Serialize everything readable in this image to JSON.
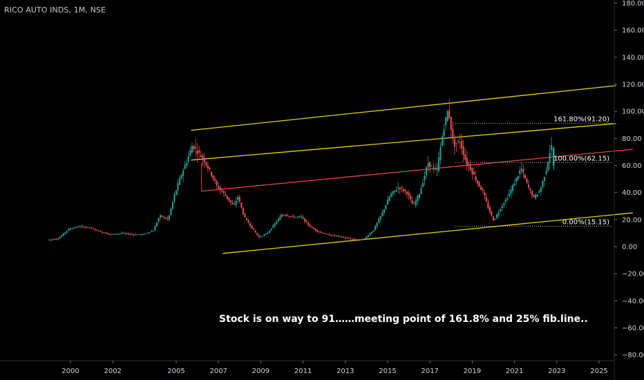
{
  "header": {
    "title": "RICO AUTO INDS, 1M, NSE"
  },
  "chart_data": {
    "type": "candlestick",
    "title": "RICO AUTO INDS, 1M, NSE",
    "symbol": "RICO AUTO INDS",
    "interval": "1M",
    "exchange": "NSE",
    "y_axis": {
      "ticks": [
        "180.00",
        "160.00",
        "140.00",
        "120.00",
        "100.00",
        "80.00",
        "60.00",
        "40.00",
        "20.00",
        "0.00",
        "−20.00",
        "−40.00",
        "−60.00",
        "−80.00"
      ],
      "range": [
        -82,
        182
      ]
    },
    "x_axis": {
      "ticks": [
        "2000",
        "2002",
        "2005",
        "2007",
        "2009",
        "2011",
        "2013",
        "2015",
        "2017",
        "2019",
        "2021",
        "2023",
        "2025"
      ],
      "range_years": [
        1998.0,
        2026.6
      ]
    },
    "grid": false,
    "colors": {
      "up": "#26a69a",
      "down": "#ef5350",
      "channel": "#e6d31f",
      "midline": "#e54848",
      "axis_text": "#d1d4dc"
    },
    "price_path": [
      [
        1999.0,
        5
      ],
      [
        1999.5,
        6
      ],
      [
        2000.0,
        13
      ],
      [
        2000.5,
        15
      ],
      [
        2001.0,
        14
      ],
      [
        2001.5,
        11
      ],
      [
        2002.0,
        9
      ],
      [
        2002.5,
        10
      ],
      [
        2003.0,
        9
      ],
      [
        2003.5,
        9
      ],
      [
        2004.0,
        12
      ],
      [
        2004.3,
        23
      ],
      [
        2004.7,
        20
      ],
      [
        2005.0,
        38
      ],
      [
        2005.3,
        52
      ],
      [
        2005.6,
        64
      ],
      [
        2005.85,
        75
      ],
      [
        2006.1,
        70
      ],
      [
        2006.4,
        64
      ],
      [
        2006.7,
        55
      ],
      [
        2007.0,
        45
      ],
      [
        2007.4,
        38
      ],
      [
        2007.8,
        30
      ],
      [
        2008.0,
        37
      ],
      [
        2008.3,
        22
      ],
      [
        2008.7,
        13
      ],
      [
        2009.0,
        7
      ],
      [
        2009.4,
        10
      ],
      [
        2009.8,
        18
      ],
      [
        2010.1,
        24
      ],
      [
        2010.6,
        22
      ],
      [
        2011.0,
        22
      ],
      [
        2011.4,
        15
      ],
      [
        2011.8,
        11
      ],
      [
        2012.2,
        9
      ],
      [
        2012.7,
        8
      ],
      [
        2013.2,
        6
      ],
      [
        2013.7,
        5
      ],
      [
        2014.0,
        6
      ],
      [
        2014.4,
        12
      ],
      [
        2014.8,
        24
      ],
      [
        2015.2,
        38
      ],
      [
        2015.6,
        44
      ],
      [
        2016.0,
        40
      ],
      [
        2016.3,
        30
      ],
      [
        2016.6,
        40
      ],
      [
        2017.0,
        62
      ],
      [
        2017.4,
        55
      ],
      [
        2017.7,
        85
      ],
      [
        2017.95,
        102
      ],
      [
        2018.2,
        75
      ],
      [
        2018.5,
        78
      ],
      [
        2018.8,
        62
      ],
      [
        2019.0,
        58
      ],
      [
        2019.3,
        48
      ],
      [
        2019.6,
        40
      ],
      [
        2019.85,
        28
      ],
      [
        2020.1,
        19
      ],
      [
        2020.4,
        28
      ],
      [
        2020.8,
        38
      ],
      [
        2021.1,
        48
      ],
      [
        2021.4,
        58
      ],
      [
        2021.7,
        45
      ],
      [
        2022.0,
        36
      ],
      [
        2022.3,
        42
      ],
      [
        2022.6,
        58
      ],
      [
        2022.8,
        74
      ]
    ],
    "channel_lines": [
      {
        "name": "upper",
        "from": [
          2005.7,
          86
        ],
        "to": [
          2025.8,
          119
        ]
      },
      {
        "name": "middle",
        "from": [
          2005.7,
          64
        ],
        "to": [
          2025.8,
          91
        ]
      },
      {
        "name": "lower",
        "from": [
          2007.2,
          -5
        ],
        "to": [
          2026.6,
          25
        ]
      }
    ],
    "regression_line": {
      "from": [
        2006.2,
        41
      ],
      "to": [
        2026.6,
        72
      ]
    },
    "fib_levels": [
      {
        "label": "161.80%(91.20)",
        "value": 91.2
      },
      {
        "label": "100.00%(62.15)",
        "value": 62.15
      },
      {
        "label": "0.00%(15.15)",
        "value": 15.15
      }
    ],
    "fib_start_year": 2018.2,
    "annotation": "Stock is on way to 91……meeting point of 161.8% and 25% fib.line.."
  }
}
